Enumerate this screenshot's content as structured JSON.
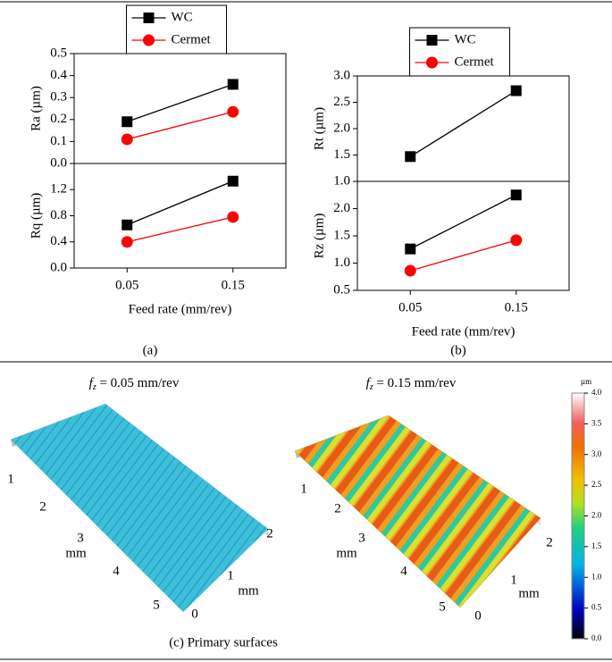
{
  "chart_data": [
    {
      "type": "line",
      "ylabel": "Ra (µm)",
      "xlim": [
        0,
        0.2
      ],
      "x": [
        0.05,
        0.15
      ],
      "ylim": [
        0,
        0.5
      ],
      "yticks": [
        {
          "value": 0,
          "label": "0.0"
        },
        0.1,
        0.2,
        0.3,
        0.4,
        0.5
      ],
      "legend": "above",
      "series": [
        {
          "name": "WC",
          "color": "#000000",
          "marker": "square",
          "values": [
            0.19,
            0.36
          ]
        },
        {
          "name": "Cermet",
          "color": "#ff0000",
          "marker": "circle",
          "values": [
            0.11,
            0.235
          ]
        }
      ]
    },
    {
      "type": "line",
      "ylabel": "Rq (µm)",
      "xlabel": "Feed rate (mm/rev)",
      "xlim": [
        0,
        0.2
      ],
      "x": [
        0.05,
        0.15
      ],
      "xticks": [
        0.05,
        0.15
      ],
      "ylim": [
        0,
        1.6
      ],
      "yticks": [
        {
          "value": 0,
          "label": "0.0"
        },
        0.4,
        0.8,
        1.2
      ],
      "series": [
        {
          "name": "WC",
          "color": "#000000",
          "marker": "square",
          "values": [
            0.66,
            1.33
          ]
        },
        {
          "name": "Cermet",
          "color": "#ff0000",
          "marker": "circle",
          "values": [
            0.4,
            0.78
          ]
        }
      ]
    },
    {
      "type": "line",
      "ylabel": "Rt (µm)",
      "xlim": [
        0,
        0.2
      ],
      "x": [
        0.05,
        0.15
      ],
      "ylim": [
        1,
        3
      ],
      "yticks": [
        {
          "value": 1,
          "label": "1.0"
        },
        1.5,
        {
          "value": 2,
          "label": "2.0"
        },
        2.5,
        {
          "value": 3,
          "label": "3.0"
        }
      ],
      "legend": "above",
      "series": [
        {
          "name": "WC",
          "color": "#000000",
          "marker": "square",
          "values": [
            1.47,
            2.72
          ]
        },
        {
          "name": "Cermet",
          "color": "#ff0000",
          "marker": "circle",
          "values": [
            null,
            null
          ]
        }
      ]
    },
    {
      "type": "line",
      "ylabel": "Rz (µm)",
      "xlabel": "Feed rate (mm/rev)",
      "xlim": [
        0,
        0.2
      ],
      "x": [
        0.05,
        0.15
      ],
      "xticks": [
        0.05,
        0.15
      ],
      "ylim": [
        0.5,
        2.5
      ],
      "yticks": [
        0.5,
        {
          "value": 1,
          "label": "1.0"
        },
        1.5,
        {
          "value": 2,
          "label": "2.0"
        }
      ],
      "series": [
        {
          "name": "WC",
          "color": "#000000",
          "marker": "square",
          "values": [
            1.26,
            2.25
          ]
        },
        {
          "name": "Cermet",
          "color": "#ff0000",
          "marker": "circle",
          "values": [
            0.86,
            1.42
          ]
        }
      ]
    }
  ],
  "figure": {
    "captions": [
      "(a)",
      "(b)",
      "(c) Primary surfaces"
    ],
    "surfaces": [
      {
        "title": {
          "italic": "f",
          "subscript": "z",
          "text": " = 0.05 mm/rev"
        },
        "length_ticks": [
          1,
          2,
          3,
          4,
          5
        ],
        "length_unit": "mm",
        "width_ticks": [
          0,
          1,
          2
        ],
        "width_unit": "mm"
      },
      {
        "title": {
          "italic": "f",
          "subscript": "z",
          "text": " = 0.15 mm/rev"
        },
        "length_ticks": [
          1,
          2,
          3,
          4,
          5
        ],
        "length_unit": "mm",
        "width_ticks": [
          0,
          1,
          2
        ],
        "width_unit": "mm"
      }
    ],
    "colorbar": {
      "unit": "µm",
      "lim": [
        0,
        4
      ],
      "ticks": [
        {
          "value": 0,
          "label": "0.0"
        },
        0.5,
        {
          "value": 1,
          "label": "1.0"
        },
        1.5,
        {
          "value": 2,
          "label": "2.0"
        },
        2.5,
        {
          "value": 3,
          "label": "3.0"
        },
        3.5,
        {
          "value": 4,
          "label": "4.0"
        }
      ]
    }
  }
}
